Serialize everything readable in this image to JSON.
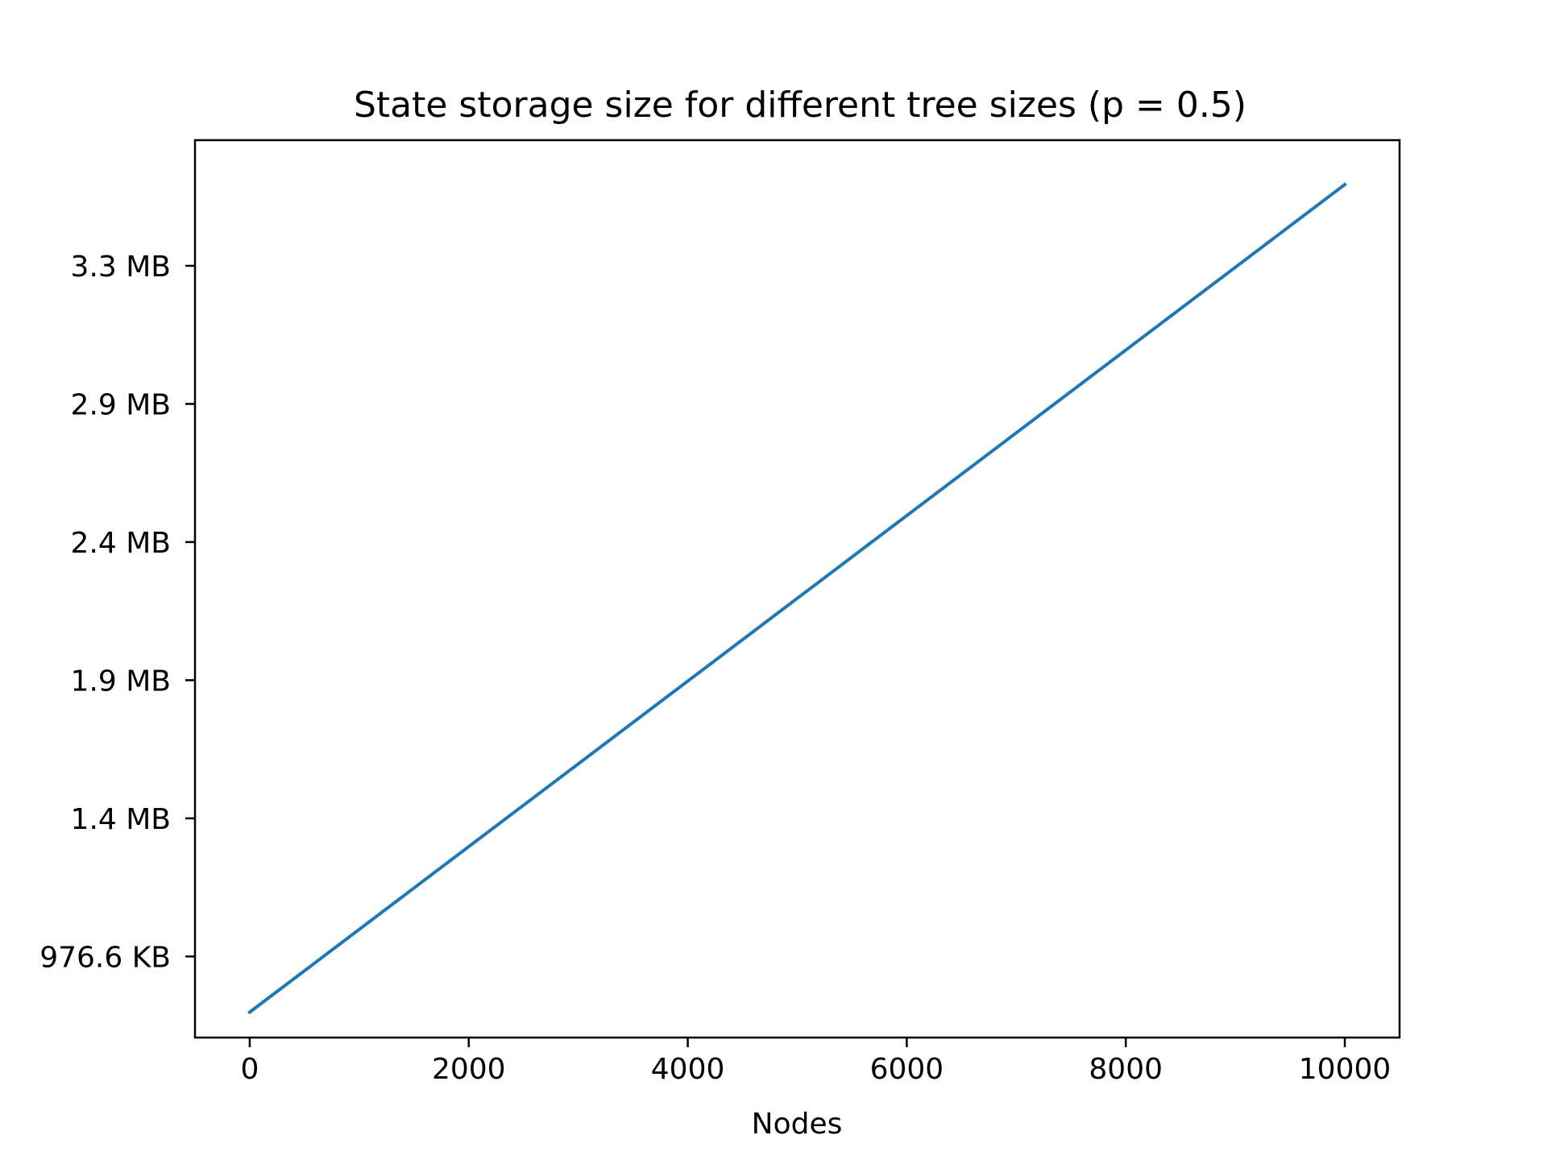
{
  "chart_data": {
    "type": "line",
    "title": "State storage size for different tree sizes (p = 0.5)",
    "xlabel": "Nodes",
    "ylabel": "",
    "xlim": [
      -500,
      10500
    ],
    "ylim": [
      690,
      3862
    ],
    "x_ticks": [
      {
        "value": 0,
        "label": "0"
      },
      {
        "value": 2000,
        "label": "2000"
      },
      {
        "value": 4000,
        "label": "4000"
      },
      {
        "value": 6000,
        "label": "6000"
      },
      {
        "value": 8000,
        "label": "8000"
      },
      {
        "value": 10000,
        "label": "10000"
      }
    ],
    "y_ticks": [
      {
        "value": 976.6,
        "label": "976.6 KB"
      },
      {
        "value": 1464.8,
        "label": "1.4 MB"
      },
      {
        "value": 1953.1,
        "label": "1.9 MB"
      },
      {
        "value": 2441.4,
        "label": "2.4 MB"
      },
      {
        "value": 2929.7,
        "label": "2.9 MB"
      },
      {
        "value": 3417.9,
        "label": "3.3 MB"
      }
    ],
    "series": [
      {
        "color": "#1f77b4",
        "x": [
          0,
          10000
        ],
        "y": [
          780,
          3705
        ]
      }
    ],
    "grid": false,
    "legend": "none"
  }
}
